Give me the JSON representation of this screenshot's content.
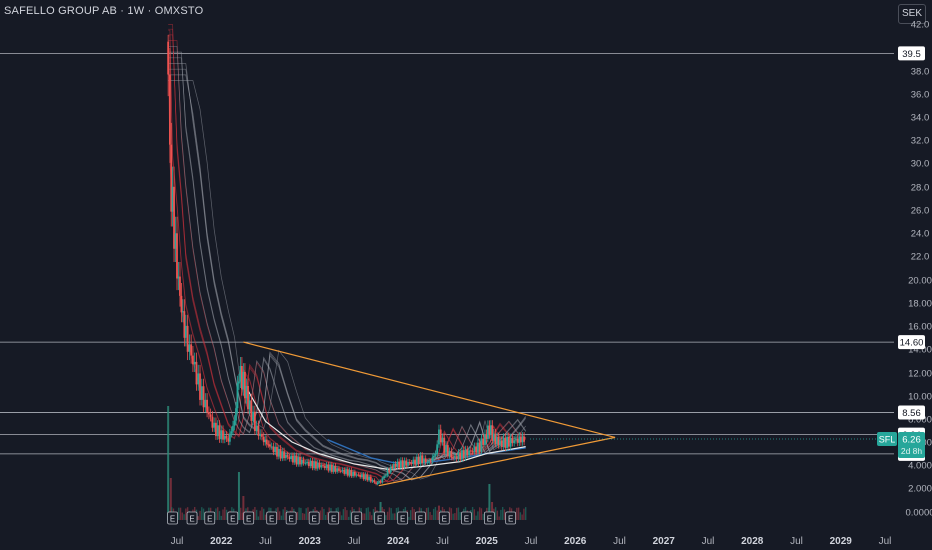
{
  "header": {
    "title": "SAFELLO GROUP AB · 1W · OMXSTO",
    "currency": "SEK"
  },
  "chart_data": {
    "type": "candlestick",
    "symbol": "SFL",
    "last_price": "6.26",
    "countdown": "2d 8h",
    "y_ticks": [
      "42.0",
      "38.0",
      "36.0",
      "34.0",
      "32.0",
      "30.0",
      "28.0",
      "26.0",
      "24.0",
      "22.0",
      "20.00",
      "18.00",
      "16.00",
      "14.00",
      "12.00",
      "10.00",
      "8.000",
      "6.000",
      "4.000",
      "2.000",
      "0.0000"
    ],
    "y_tick_values": [
      42,
      38,
      36,
      34,
      32,
      30,
      28,
      26,
      24,
      22,
      20,
      18,
      16,
      14,
      12,
      10,
      8,
      6,
      4,
      2,
      0
    ],
    "x_ticks": [
      {
        "label": "Jul",
        "t": 2021.5,
        "bold": false
      },
      {
        "label": "2022",
        "t": 2022.0,
        "bold": true
      },
      {
        "label": "Jul",
        "t": 2022.5,
        "bold": false
      },
      {
        "label": "2023",
        "t": 2023.0,
        "bold": true
      },
      {
        "label": "Jul",
        "t": 2023.5,
        "bold": false
      },
      {
        "label": "2024",
        "t": 2024.0,
        "bold": true
      },
      {
        "label": "Jul",
        "t": 2024.5,
        "bold": false
      },
      {
        "label": "2025",
        "t": 2025.0,
        "bold": true
      },
      {
        "label": "Jul",
        "t": 2025.5,
        "bold": false
      },
      {
        "label": "2026",
        "t": 2026.0,
        "bold": true
      },
      {
        "label": "Jul",
        "t": 2026.5,
        "bold": false
      },
      {
        "label": "2027",
        "t": 2027.0,
        "bold": true
      },
      {
        "label": "Jul",
        "t": 2027.5,
        "bold": false
      },
      {
        "label": "2028",
        "t": 2028.0,
        "bold": true
      },
      {
        "label": "Jul",
        "t": 2028.5,
        "bold": false
      },
      {
        "label": "2029",
        "t": 2029.0,
        "bold": true
      },
      {
        "label": "Jul",
        "t": 2029.5,
        "bold": false
      }
    ],
    "horizontal_levels": [
      {
        "value": 39.5,
        "label": "39.5"
      },
      {
        "value": 14.6,
        "label": "14.60"
      },
      {
        "value": 8.56,
        "label": "8.56"
      },
      {
        "value": 6.64,
        "label": "6.64"
      },
      {
        "value": 4.97,
        "label": "4.97"
      }
    ],
    "price_path": [
      {
        "t": 2021.4,
        "v": 40.5
      },
      {
        "t": 2021.42,
        "v": 30.0
      },
      {
        "t": 2021.45,
        "v": 26.0
      },
      {
        "t": 2021.5,
        "v": 21.0
      },
      {
        "t": 2021.55,
        "v": 17.5
      },
      {
        "t": 2021.6,
        "v": 15.0
      },
      {
        "t": 2021.68,
        "v": 13.0
      },
      {
        "t": 2021.76,
        "v": 10.5
      },
      {
        "t": 2021.84,
        "v": 8.8
      },
      {
        "t": 2021.92,
        "v": 7.2
      },
      {
        "t": 2022.0,
        "v": 6.6
      },
      {
        "t": 2022.08,
        "v": 6.2
      },
      {
        "t": 2022.15,
        "v": 7.8
      },
      {
        "t": 2022.2,
        "v": 12.0
      },
      {
        "t": 2022.25,
        "v": 11.2
      },
      {
        "t": 2022.32,
        "v": 9.0
      },
      {
        "t": 2022.4,
        "v": 7.0
      },
      {
        "t": 2022.48,
        "v": 6.2
      },
      {
        "t": 2022.55,
        "v": 5.6
      },
      {
        "t": 2022.65,
        "v": 5.0
      },
      {
        "t": 2022.75,
        "v": 4.7
      },
      {
        "t": 2022.85,
        "v": 4.4
      },
      {
        "t": 2022.95,
        "v": 4.2
      },
      {
        "t": 2023.05,
        "v": 4.0
      },
      {
        "t": 2023.15,
        "v": 3.9
      },
      {
        "t": 2023.25,
        "v": 3.7
      },
      {
        "t": 2023.35,
        "v": 3.5
      },
      {
        "t": 2023.45,
        "v": 3.3
      },
      {
        "t": 2023.55,
        "v": 3.1
      },
      {
        "t": 2023.65,
        "v": 2.9
      },
      {
        "t": 2023.75,
        "v": 2.4
      },
      {
        "t": 2023.8,
        "v": 2.6
      },
      {
        "t": 2023.88,
        "v": 3.4
      },
      {
        "t": 2023.95,
        "v": 4.0
      },
      {
        "t": 2024.05,
        "v": 4.1
      },
      {
        "t": 2024.15,
        "v": 4.2
      },
      {
        "t": 2024.25,
        "v": 4.5
      },
      {
        "t": 2024.35,
        "v": 4.2
      },
      {
        "t": 2024.42,
        "v": 5.0
      },
      {
        "t": 2024.46,
        "v": 6.8
      },
      {
        "t": 2024.52,
        "v": 5.5
      },
      {
        "t": 2024.62,
        "v": 4.6
      },
      {
        "t": 2024.72,
        "v": 4.9
      },
      {
        "t": 2024.82,
        "v": 5.2
      },
      {
        "t": 2024.92,
        "v": 5.6
      },
      {
        "t": 2024.98,
        "v": 6.4
      },
      {
        "t": 2025.03,
        "v": 7.2
      },
      {
        "t": 2025.08,
        "v": 6.3
      },
      {
        "t": 2025.15,
        "v": 5.9
      },
      {
        "t": 2025.25,
        "v": 6.0
      },
      {
        "t": 2025.35,
        "v": 6.2
      },
      {
        "t": 2025.44,
        "v": 6.26
      }
    ],
    "triangle": {
      "upper": [
        {
          "t": 2022.25,
          "v": 14.6
        },
        {
          "t": 2026.45,
          "v": 6.4
        }
      ],
      "lower": [
        {
          "t": 2023.78,
          "v": 2.2
        },
        {
          "t": 2026.45,
          "v": 6.4
        }
      ]
    },
    "earnings_markers": [
      2021.45,
      2021.67,
      2021.87,
      2022.13,
      2022.31,
      2022.57,
      2022.79,
      2023.05,
      2023.27,
      2023.53,
      2023.79,
      2024.05,
      2024.25,
      2024.52,
      2024.77,
      2025.03,
      2025.27
    ],
    "volume_spikes": [
      {
        "t": 2021.4,
        "h": 0.95
      },
      {
        "t": 2021.43,
        "h": 0.35
      },
      {
        "t": 2022.2,
        "h": 0.4
      },
      {
        "t": 2022.25,
        "h": 0.2
      },
      {
        "t": 2023.8,
        "h": 0.15
      },
      {
        "t": 2024.46,
        "h": 0.12
      },
      {
        "t": 2025.03,
        "h": 0.3
      },
      {
        "t": 2025.06,
        "h": 0.15
      }
    ]
  }
}
